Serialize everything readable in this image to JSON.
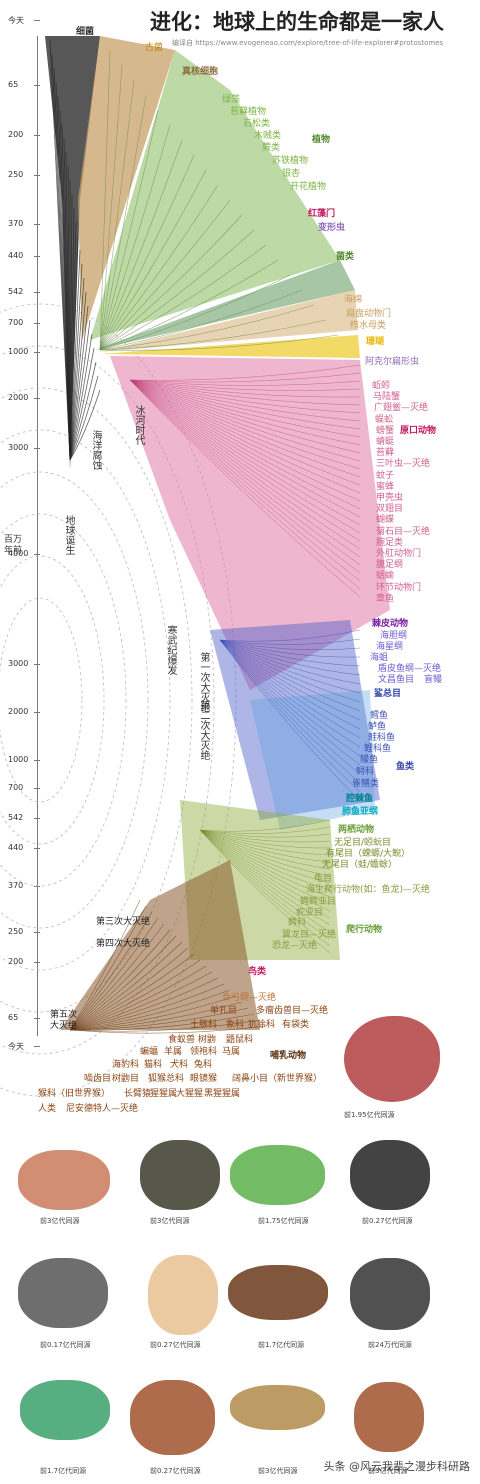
{
  "header": {
    "title": "进化：地球上的生命都是一家人",
    "subtitle": "编译自 https://www.evogeneao.com/explore/tree-of-life-explorer#protostomes"
  },
  "axis": {
    "unit_label": "百万年前",
    "ticks_top": [
      "今天",
      "65",
      "200",
      "250",
      "370",
      "440",
      "542",
      "700",
      "1000",
      "2000",
      "3000",
      "4000"
    ],
    "ticks_bottom": [
      "3000",
      "2000",
      "1000",
      "700",
      "542",
      "440",
      "370",
      "250",
      "200",
      "65",
      "今天"
    ]
  },
  "annotations": {
    "earth_birth": "地球诞生",
    "ocean_erosion": "海洋腐蚀",
    "ice_age": "冰河时代",
    "cambrian": "寒武纪爆发",
    "extinction_1": "第一次大灭绝",
    "extinction_2": "第二次大灭绝",
    "extinction_3": "第三次大灭绝",
    "extinction_4": "第四次大灭绝",
    "extinction_5": "第五次大灭绝"
  },
  "groups_top": [
    {
      "text": "细菌",
      "color": "#333333"
    },
    {
      "text": "古菌",
      "color": "#b8860b"
    },
    {
      "text": "真核细胞",
      "color": "#8a6d3b"
    },
    {
      "text": "绿藻",
      "color": "#7cb342"
    },
    {
      "text": "苔藓植物",
      "color": "#7cb342"
    },
    {
      "text": "石松类",
      "color": "#7cb342"
    },
    {
      "text": "木贼类",
      "color": "#7cb342"
    },
    {
      "text": "植物",
      "color": "#558b2f"
    },
    {
      "text": "蕨类",
      "color": "#7cb342"
    },
    {
      "text": "苏铁植物",
      "color": "#7cb342"
    },
    {
      "text": "银杏",
      "color": "#7cb342"
    },
    {
      "text": "开花植物",
      "color": "#7cb342"
    },
    {
      "text": "红藻门",
      "color": "#c2185b"
    },
    {
      "text": "变形虫",
      "color": "#8e6bbf"
    },
    {
      "text": "菌类",
      "color": "#558b2f"
    },
    {
      "text": "海绵",
      "color": "#c8a060"
    },
    {
      "text": "扁盘动物门",
      "color": "#c8a060"
    },
    {
      "text": "栉水母类",
      "color": "#c8a060"
    },
    {
      "text": "珊瑚",
      "color": "#e6b800"
    },
    {
      "text": "阿克尔扁形虫",
      "color": "#8e6bbf"
    }
  ],
  "groups_protostomes": [
    {
      "text": "蚯蚓",
      "color": "#d0608a"
    },
    {
      "text": "马陆蟹",
      "color": "#d0608a"
    },
    {
      "text": "广翅鲎—灭绝",
      "color": "#d0608a"
    },
    {
      "text": "蜈蚣",
      "color": "#d0608a"
    },
    {
      "text": "螃蟹",
      "color": "#d0608a"
    },
    {
      "text": "原口动物",
      "color": "#c2185b"
    },
    {
      "text": "蜻蜓",
      "color": "#d0608a"
    },
    {
      "text": "苔藓",
      "color": "#d0608a"
    },
    {
      "text": "三叶虫—灭绝",
      "color": "#d0608a"
    },
    {
      "text": "蚊子",
      "color": "#d0608a"
    },
    {
      "text": "蜜蜂",
      "color": "#d0608a"
    },
    {
      "text": "甲壳虫",
      "color": "#d0608a"
    },
    {
      "text": "双翅目",
      "color": "#d0608a"
    },
    {
      "text": "蝴蝶",
      "color": "#d0608a"
    },
    {
      "text": "菊石目—灭绝",
      "color": "#d0608a"
    },
    {
      "text": "腕足类",
      "color": "#d0608a"
    },
    {
      "text": "外肛动物门",
      "color": "#d0608a"
    },
    {
      "text": "腹足纲",
      "color": "#d0608a"
    },
    {
      "text": "蛞蝓",
      "color": "#d0608a"
    },
    {
      "text": "环节动物门",
      "color": "#d0608a"
    },
    {
      "text": "章鱼",
      "color": "#d0608a"
    }
  ],
  "groups_deuterostomes": [
    {
      "text": "棘皮动物",
      "color": "#7b1fa2"
    },
    {
      "text": "海胆纲",
      "color": "#6a5acd"
    },
    {
      "text": "海星纲",
      "color": "#6a5acd"
    },
    {
      "text": "海蛆",
      "color": "#6a5acd"
    },
    {
      "text": "盾皮鱼纲—灭绝",
      "color": "#6a5acd"
    },
    {
      "text": "文昌鱼目",
      "color": "#6a5acd"
    },
    {
      "text": "盲鳗",
      "color": "#6a5acd"
    },
    {
      "text": "鲨总目",
      "color": "#3949ab"
    },
    {
      "text": "鳕鱼",
      "color": "#3f51b5"
    },
    {
      "text": "鲈鱼",
      "color": "#3f51b5"
    },
    {
      "text": "鲑科鱼",
      "color": "#3f51b5"
    },
    {
      "text": "鲤科鱼",
      "color": "#3f51b5"
    },
    {
      "text": "鳗鱼",
      "color": "#3f51b5"
    },
    {
      "text": "鱼类",
      "color": "#3949ab"
    },
    {
      "text": "鲟科",
      "color": "#3f51b5"
    },
    {
      "text": "雀鳝类",
      "color": "#3f51b5"
    },
    {
      "text": "腔棘鱼",
      "color": "#00838f"
    },
    {
      "text": "肺鱼亚纲",
      "color": "#00acc1"
    },
    {
      "text": "两栖动物",
      "color": "#689f38"
    },
    {
      "text": "无足目/蚓蚖目",
      "color": "#7a8b2e"
    },
    {
      "text": "有尾目（蝾螈/大鲵）",
      "color": "#7a8b2e"
    },
    {
      "text": "无尾目（蛙/蟾蜍）",
      "color": "#7a8b2e"
    },
    {
      "text": "龟目",
      "color": "#8a9a3e"
    },
    {
      "text": "海生爬行动物(如：鱼龙)—灭绝",
      "color": "#8a9a3e"
    },
    {
      "text": "鳄鳄亚目",
      "color": "#8a9a3e"
    },
    {
      "text": "蛇亚目",
      "color": "#8a9a3e"
    },
    {
      "text": "爬行动物",
      "color": "#689f38"
    },
    {
      "text": "鳄科",
      "color": "#8a9a3e"
    },
    {
      "text": "翼龙目—灭绝",
      "color": "#8a9a3e"
    },
    {
      "text": "恐龙—灭绝",
      "color": "#8a9a3e"
    },
    {
      "text": "鸟类",
      "color": "#c2185b"
    }
  ],
  "groups_mammals": [
    {
      "text": "合弓纲—灭绝",
      "color": "#c07030"
    },
    {
      "text": "单孔目",
      "color": "#8b4513"
    },
    {
      "text": "多瘤齿兽目—灭绝",
      "color": "#8b4513"
    },
    {
      "text": "土豚科",
      "color": "#8b4513"
    },
    {
      "text": "象科",
      "color": "#8b4513"
    },
    {
      "text": "犰狳科",
      "color": "#8b4513"
    },
    {
      "text": "有袋类",
      "color": "#8b4513"
    },
    {
      "text": "食蚁兽",
      "color": "#8b4513"
    },
    {
      "text": "树鼩",
      "color": "#8b4513"
    },
    {
      "text": "鼯鼠科",
      "color": "#8b4513"
    },
    {
      "text": "蝙蝠",
      "color": "#8b4513"
    },
    {
      "text": "羊属",
      "color": "#8b4513"
    },
    {
      "text": "领袍科",
      "color": "#8b4513"
    },
    {
      "text": "马属",
      "color": "#8b4513"
    },
    {
      "text": "哺乳动物",
      "color": "#5d2e0a"
    },
    {
      "text": "海豹科",
      "color": "#8b4513"
    },
    {
      "text": "猫科",
      "color": "#8b4513"
    },
    {
      "text": "犬科",
      "color": "#8b4513"
    },
    {
      "text": "兔科",
      "color": "#8b4513"
    },
    {
      "text": "啮齿目",
      "color": "#8b4513"
    },
    {
      "text": "树鼩目",
      "color": "#8b4513"
    },
    {
      "text": "狐猴总科",
      "color": "#8b4513"
    },
    {
      "text": "眼镜猴",
      "color": "#8b4513"
    },
    {
      "text": "阔鼻小目（新世界猴）",
      "color": "#8b4513"
    },
    {
      "text": "猴科（旧世界猴）",
      "color": "#8b4513"
    },
    {
      "text": "长臂猿",
      "color": "#8b4513"
    },
    {
      "text": "猩猩属",
      "color": "#8b4513"
    },
    {
      "text": "大猩猩",
      "color": "#8b4513"
    },
    {
      "text": "黑猩猩属",
      "color": "#8b4513"
    },
    {
      "text": "人类",
      "color": "#8b4513"
    },
    {
      "text": "尼安德特人—灭绝",
      "color": "#8b4513"
    }
  ],
  "animals": [
    {
      "icon": "fish-icon",
      "caption": "前1.95亿代同源"
    },
    {
      "icon": "octopus-icon",
      "caption": "前3亿代同源"
    },
    {
      "icon": "beetle-icon",
      "caption": "前3亿代同源"
    },
    {
      "icon": "frog-icon",
      "caption": "前1.75亿代同源"
    },
    {
      "icon": "dog-icon",
      "caption": "前0.27亿代同源"
    },
    {
      "icon": "rat-icon",
      "caption": "前0.17亿代同源"
    },
    {
      "icon": "cat-icon",
      "caption": "前0.27亿代同源"
    },
    {
      "icon": "dinosaur-icon",
      "caption": "前1.7亿代同源"
    },
    {
      "icon": "chimp-icon",
      "caption": "前24万代同源"
    },
    {
      "icon": "hummingbird-icon",
      "caption": "前1.7亿代同源"
    },
    {
      "icon": "cow-icon",
      "caption": "前0.27亿代同源"
    },
    {
      "icon": "dragonfly-icon",
      "caption": "前3亿代同源"
    },
    {
      "icon": "starfish-icon",
      "caption": "前3亿代同源"
    }
  ],
  "footer": "头条 @风云我辈之漫步科研路",
  "colors": {
    "bacteria": "#3a3a3a",
    "archaea": "#c8a06a",
    "plants": "#8fbf6a",
    "fungi": "#6aa06a",
    "coral": "#f0d040",
    "protostomes": "#e07aa8",
    "deuterostomes": "#4a5ec8",
    "fish": "#3a7bd5",
    "amphibians": "#8faa3a",
    "mammals": "#8b5a2b"
  }
}
